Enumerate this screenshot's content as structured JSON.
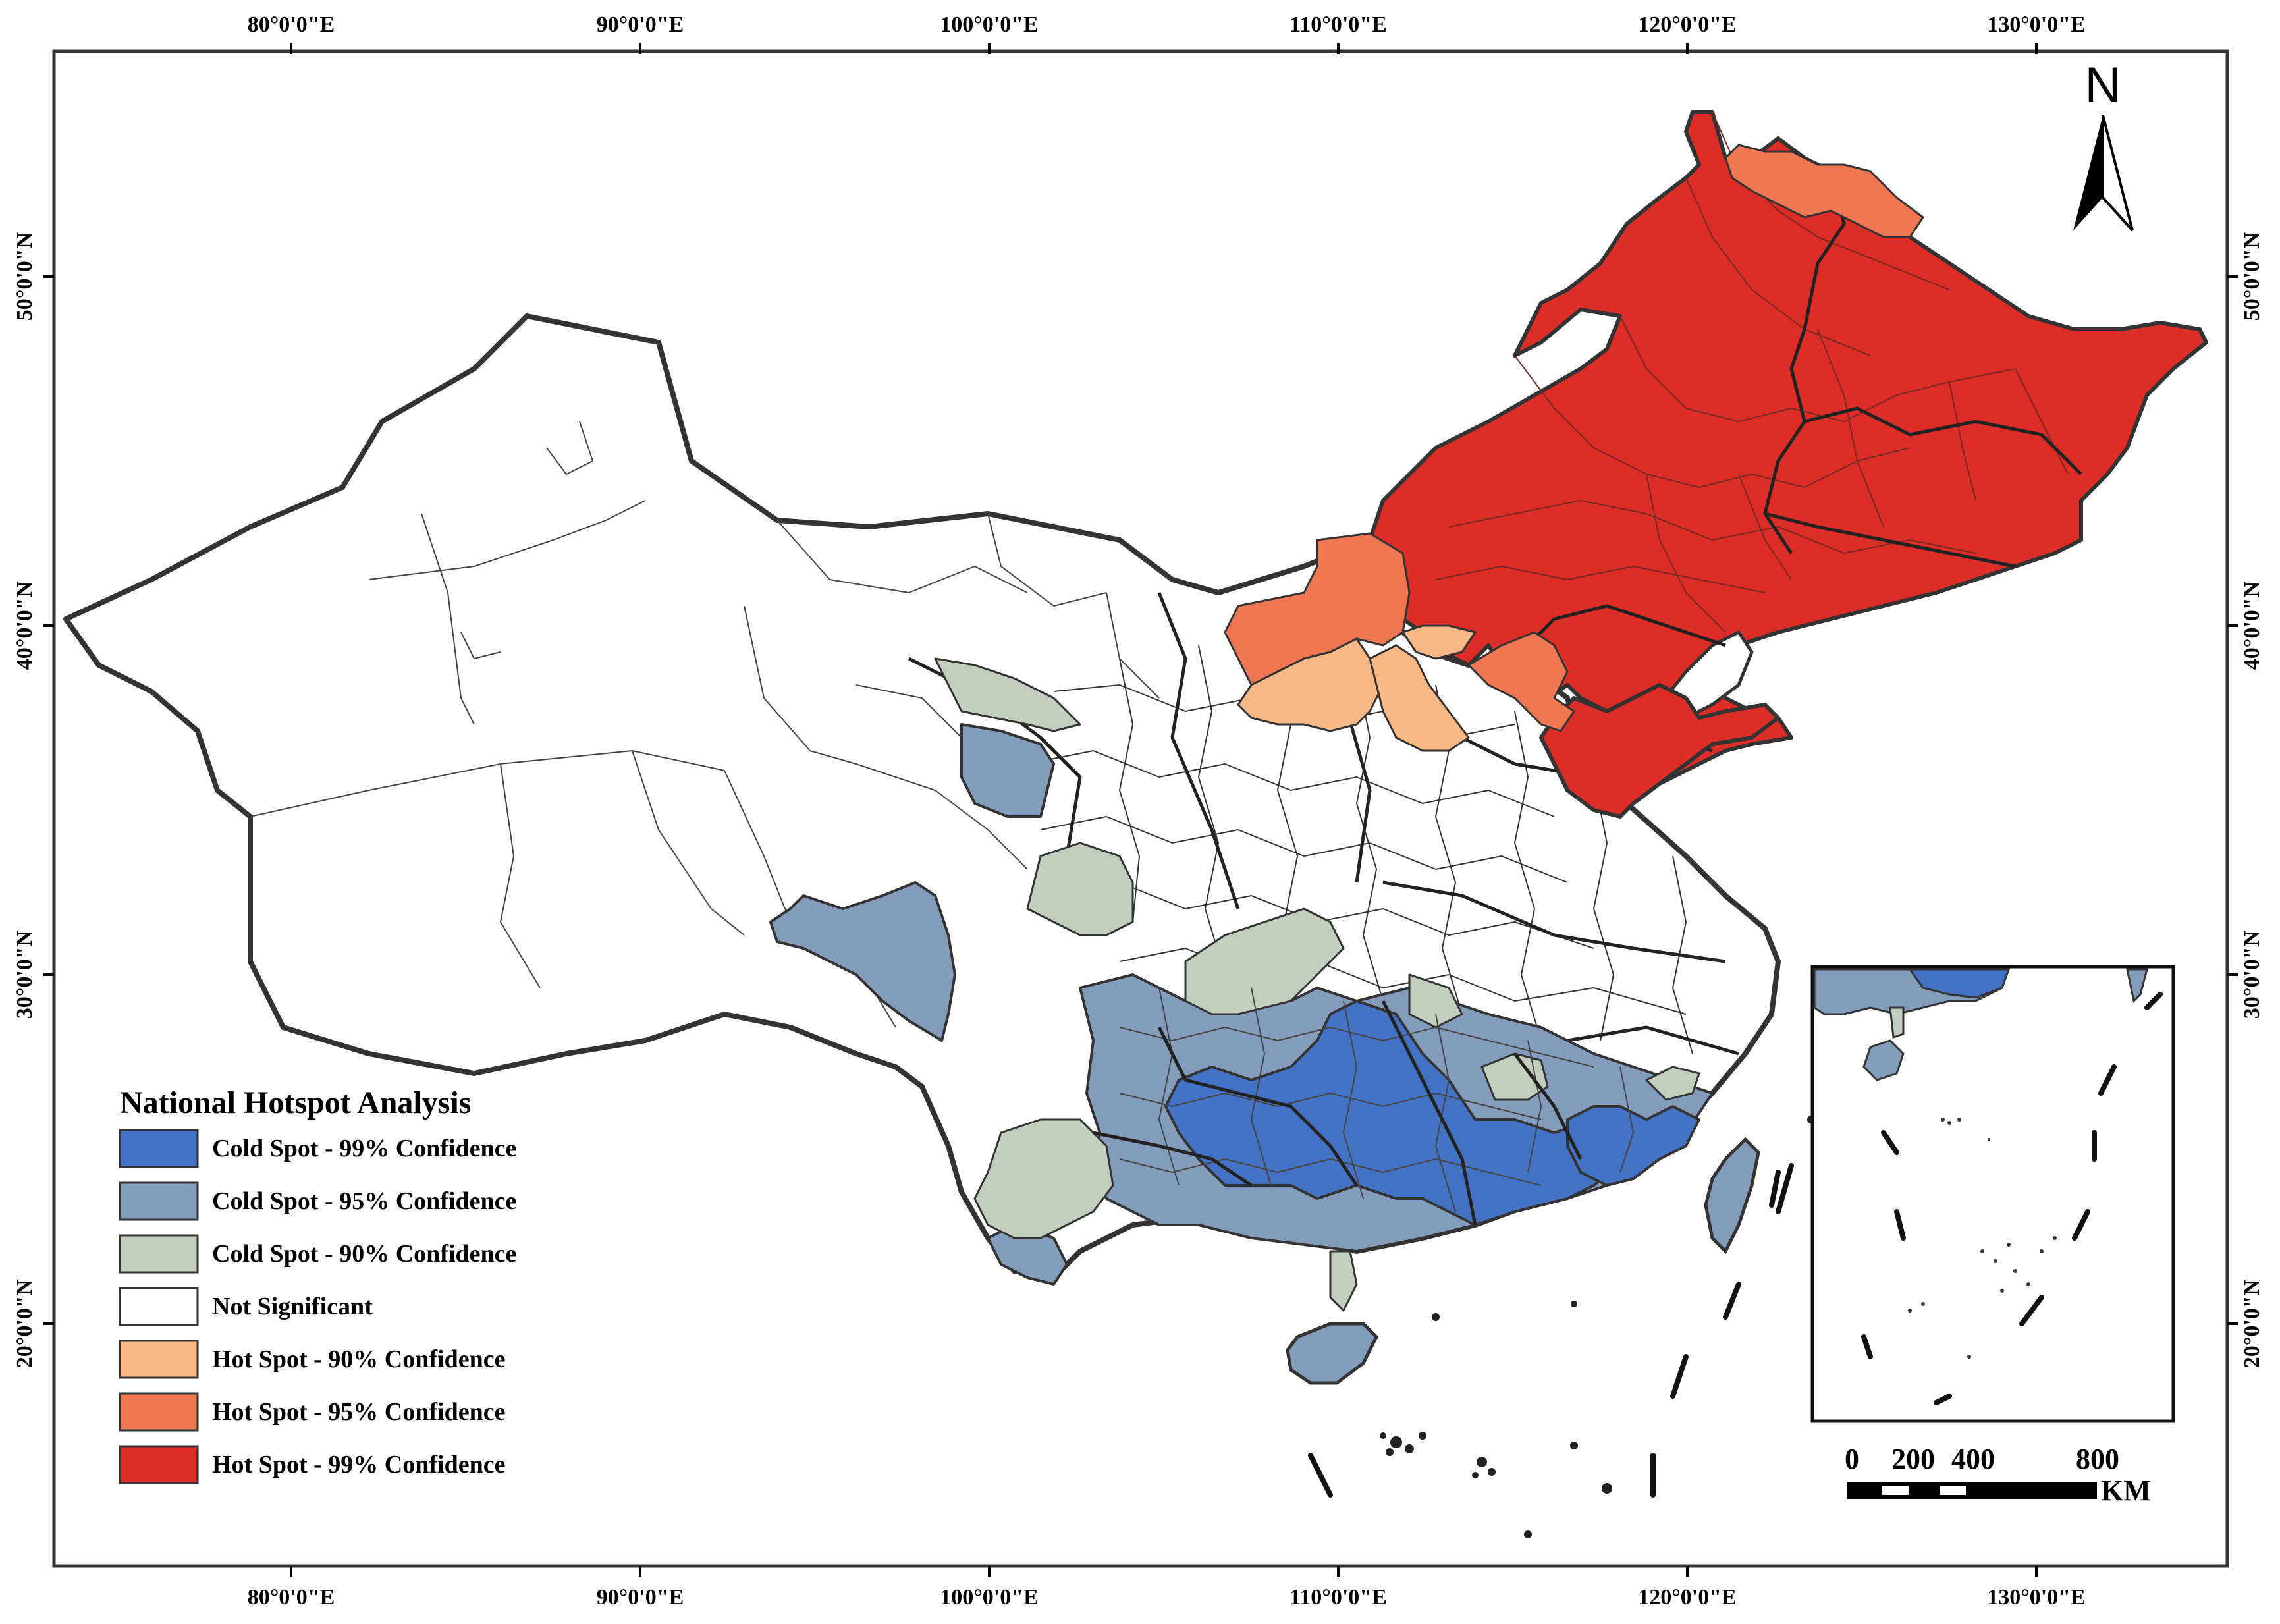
{
  "map": {
    "legend": {
      "title": "National Hotspot Analysis",
      "items": [
        {
          "label": "Cold Spot - 99% Confidence",
          "color": "#4472c4"
        },
        {
          "label": "Cold Spot - 95% Confidence",
          "color": "#849cbc"
        },
        {
          "label": "Cold Spot - 90% Confidence",
          "color": "#c3cebe"
        },
        {
          "label": "Not Significant",
          "color": "#ffffff"
        },
        {
          "label": "Hot Spot - 90% Confidence",
          "color": "#f9b987"
        },
        {
          "label": "Hot Spot - 95% Confidence",
          "color": "#ef7853"
        },
        {
          "label": "Hot Spot - 99% Confidence",
          "color": "#dc2d27"
        }
      ]
    },
    "longitude_labels": [
      "80°0'0\"E",
      "90°0'0\"E",
      "100°0'0\"E",
      "110°0'0\"E",
      "120°0'0\"E",
      "130°0'0\"E"
    ],
    "latitude_labels": [
      "50°0'0\"N",
      "40°0'0\"N",
      "30°0'0\"N",
      "20°0'0\"N"
    ],
    "north_arrow": {
      "label": "N",
      "icon": "north-arrow-icon"
    },
    "scale_bar": {
      "ticks": [
        "0",
        "200",
        "400",
        "800"
      ],
      "unit": "KM"
    }
  }
}
